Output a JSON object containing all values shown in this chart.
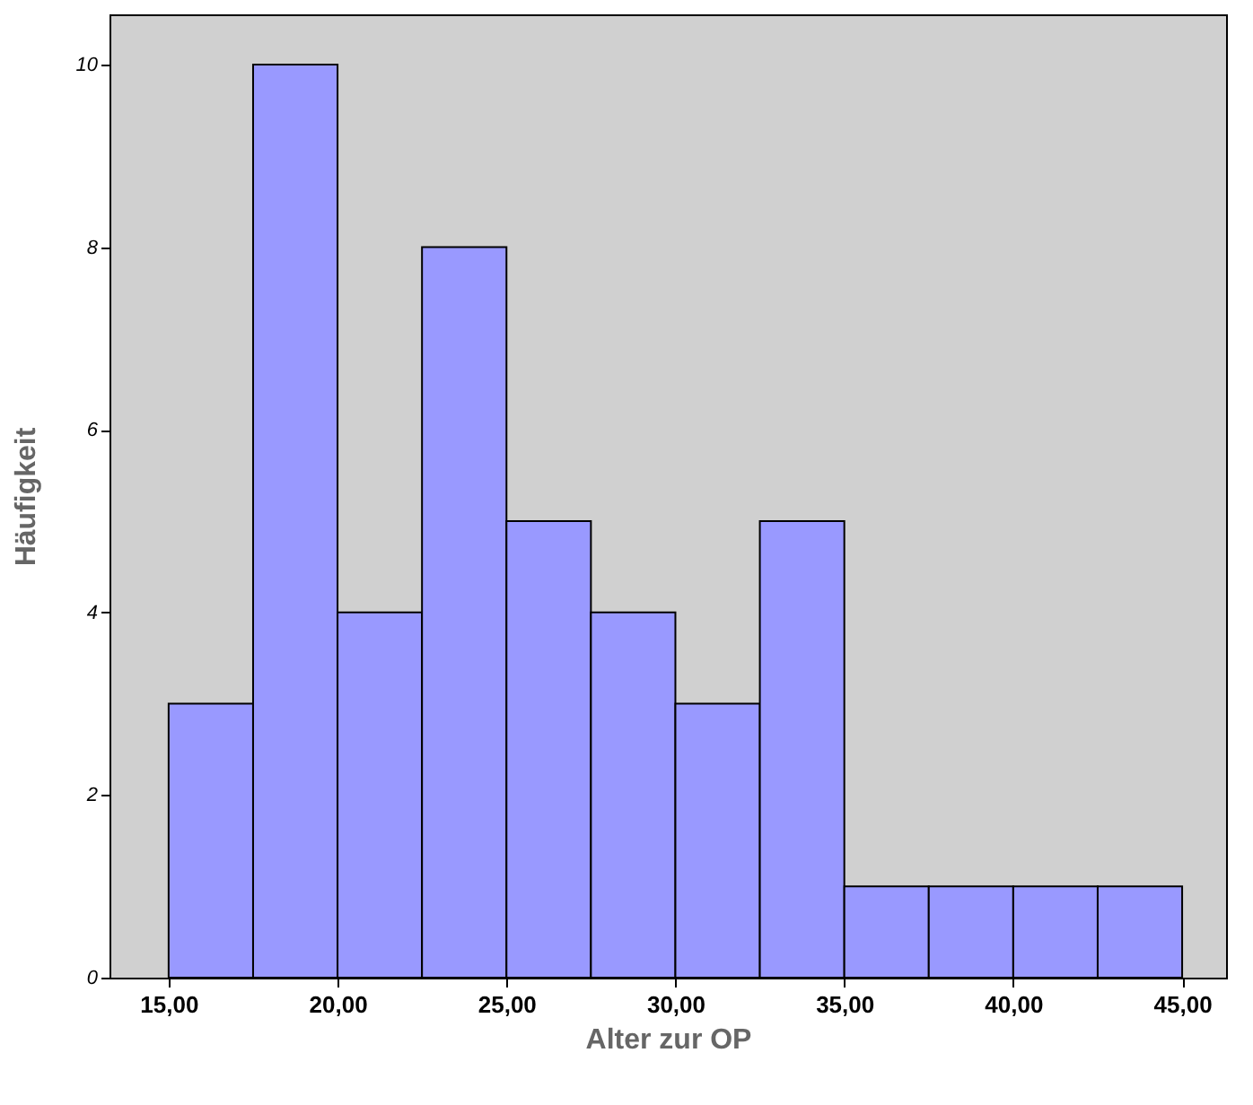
{
  "chart_data": {
    "type": "histogram",
    "xlabel": "Alter zur OP",
    "ylabel": "Häufigkeit",
    "bins": [
      15,
      17.5,
      20,
      22.5,
      25,
      27.5,
      30,
      32.5,
      35,
      37.5,
      40,
      42.5,
      45
    ],
    "values": [
      3,
      10,
      4,
      8,
      5,
      4,
      3,
      5,
      1,
      1,
      1,
      1
    ],
    "color": "#9999ff",
    "xlim": [
      13.25,
      46.3
    ],
    "xticks": [
      {
        "value": 15,
        "label": "15,00"
      },
      {
        "value": 20,
        "label": "20,00"
      },
      {
        "value": 25,
        "label": "25,00"
      },
      {
        "value": 30,
        "label": "30,00"
      },
      {
        "value": 35,
        "label": "35,00"
      },
      {
        "value": 40,
        "label": "40,00"
      },
      {
        "value": 45,
        "label": "45,00"
      }
    ],
    "ylim": [
      0,
      10.55
    ],
    "yticks": [
      0,
      2,
      4,
      6,
      8,
      10
    ],
    "grid": false
  }
}
